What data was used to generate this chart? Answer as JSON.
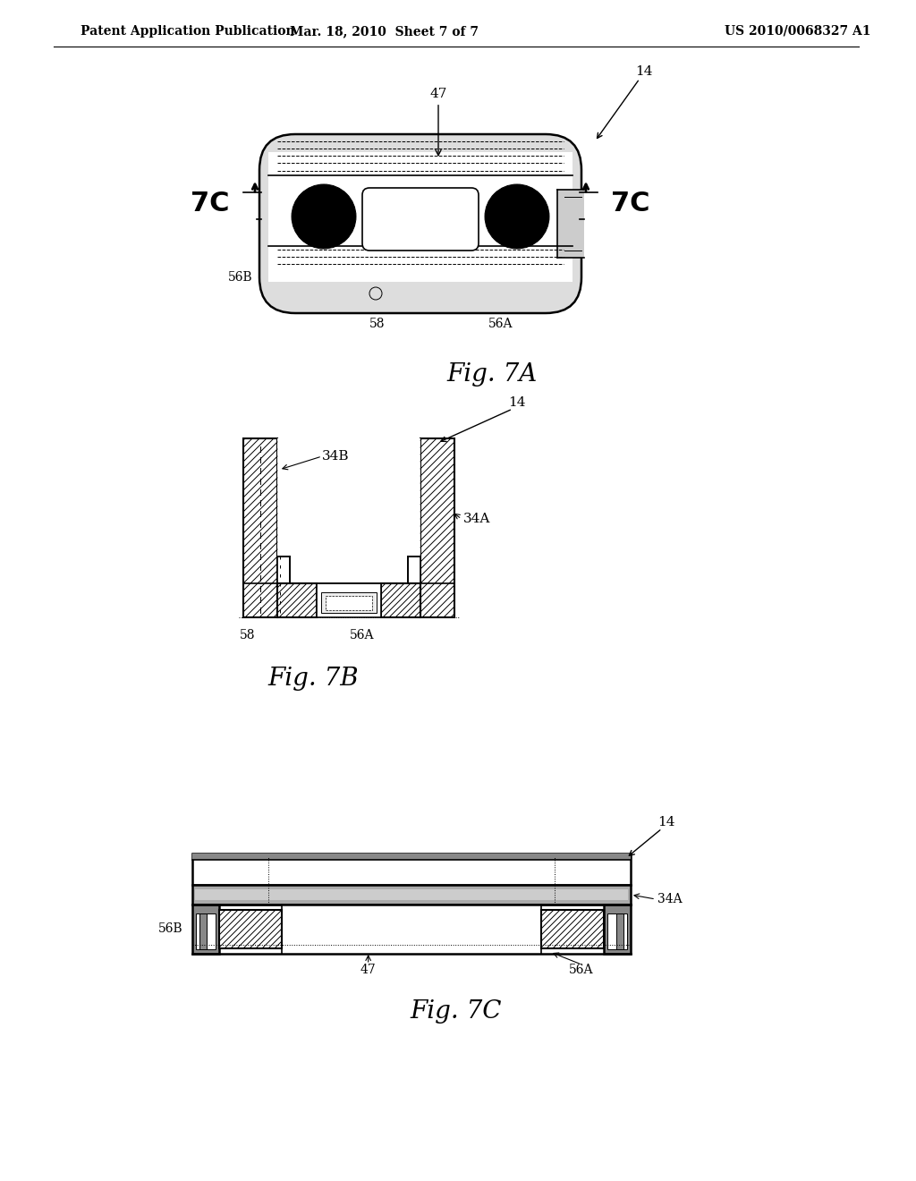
{
  "bg_color": "#ffffff",
  "header_left": "Patent Application Publication",
  "header_mid": "Mar. 18, 2010  Sheet 7 of 7",
  "header_right": "US 2010/0068327 A1",
  "fig7a_caption": "Fig. 7A",
  "fig7b_caption": "Fig. 7B",
  "fig7c_caption": "Fig. 7C",
  "line_color": "#000000",
  "gray_light": "#cccccc",
  "gray_mid": "#999999",
  "gray_dark": "#555555"
}
